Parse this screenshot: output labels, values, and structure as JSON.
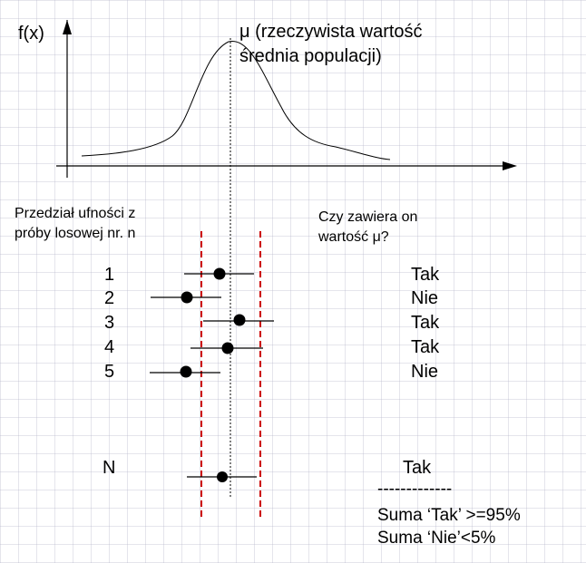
{
  "labels": {
    "y_axis": "f(x)",
    "mu_line1": "μ (rzeczywista wartość",
    "mu_line2": "średnia populacji)",
    "left_header_line1": "Przedział ufności z",
    "left_header_line2": "próby losowej nr. n",
    "right_header_line1": "Czy zawiera on",
    "right_header_line2": "wartość μ?"
  },
  "samples": [
    {
      "label": "1",
      "answer": "Tak"
    },
    {
      "label": "2",
      "answer": "Nie"
    },
    {
      "label": "3",
      "answer": "Tak"
    },
    {
      "label": "4",
      "answer": "Tak"
    },
    {
      "label": "5",
      "answer": "Nie"
    },
    {
      "label": "N",
      "answer": "Tak"
    }
  ],
  "summary": {
    "separator": "-------------",
    "line1": "Suma ‘Tak’ >=95%",
    "line2": "Suma ‘Nie’<5%"
  },
  "colors": {
    "ink": "#000000",
    "bounds": "#cc0000"
  }
}
